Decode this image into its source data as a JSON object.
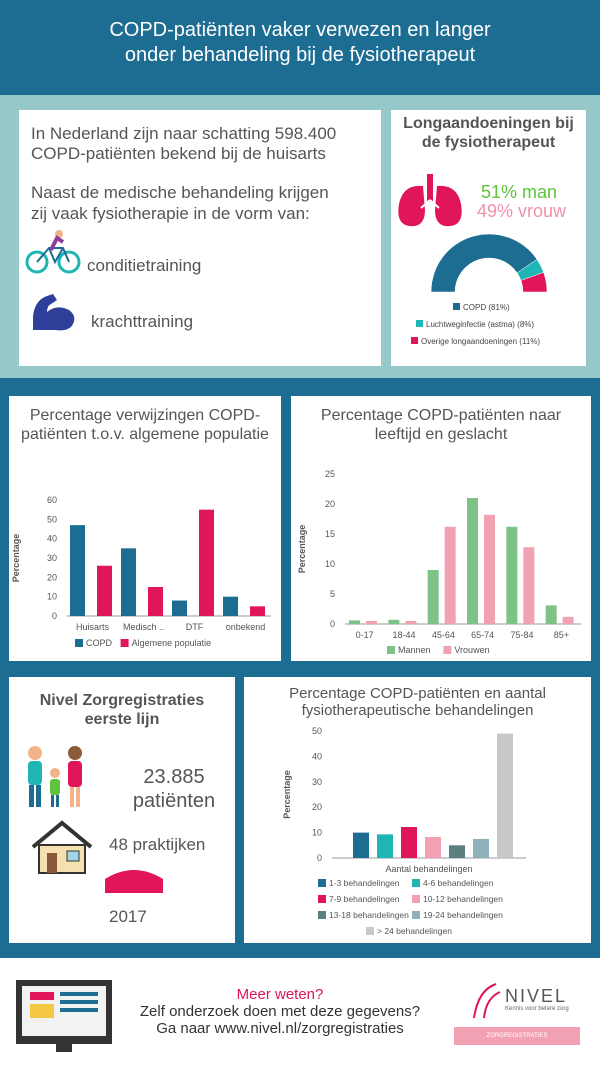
{
  "header": {
    "title_line1": "COPD-patiënten vaker verwezen en langer",
    "title_line2": "onder behandeling bij de fysiotherapeut"
  },
  "intro": {
    "line1": "In Nederland zijn naar schatting  598.400",
    "line2": "COPD-patiënten bekend bij de huisarts",
    "line3": "Naast de medische behandeling krijgen",
    "line4": "zij vaak fysiotherapie in de vorm van:",
    "item1": "conditietraining",
    "item2": "krachttraining"
  },
  "lung": {
    "title_line1": "Longaandoeningen bij",
    "title_line2": "de fysiotherapeut",
    "man": "51% man",
    "woman": "49% vrouw",
    "colors": {
      "copd": "#1d6d93",
      "luchtweg": "#1fb5b5",
      "overige": "#e0155a",
      "man": "#5ec43a",
      "woman": "#f290aa"
    },
    "slices": [
      {
        "label": "COPD (81%)",
        "value": 81
      },
      {
        "label": "Luchtweginfectie (astma) (8%)",
        "value": 8
      },
      {
        "label": "Overige longaandoeningen (11%)",
        "value": 11
      }
    ]
  },
  "chart1": {
    "title_line1": "Percentage verwijzingen COPD-",
    "title_line2": "patiënten t.o.v. algemene populatie",
    "ylabel": "Percentage",
    "ticks": [
      "0",
      "10",
      "20",
      "30",
      "40",
      "50",
      "60"
    ],
    "categories": [
      "Huisarts",
      "Medisch ..",
      "DTF",
      "onbekend"
    ],
    "legend": [
      "COPD",
      "Algemene populatie"
    ]
  },
  "chart2": {
    "title_line1": "Percentage COPD-patiënten naar",
    "title_line2": "leeftijd en geslacht",
    "ylabel": "Percentage",
    "ticks": [
      "0",
      "5",
      "10",
      "15",
      "20",
      "25"
    ],
    "categories": [
      "0-17",
      "18-44",
      "45-64",
      "65-74",
      "75-84",
      "85+"
    ],
    "legend": [
      "Mannen",
      "Vrouwen"
    ]
  },
  "nivel": {
    "title_line1": "Nivel Zorgregistraties",
    "title_line2": "eerste lijn",
    "patients_num": "23.885",
    "patients_label": "patiënten",
    "practices": "48 praktijken",
    "year": "2017"
  },
  "chart3": {
    "title_line1": "Percentage COPD-patiënten en aantal",
    "title_line2": "fysiotherapeutische behandelingen",
    "ylabel": "Percentage",
    "xlabel": "Aantal behandelingen",
    "ticks": [
      "0",
      "10",
      "20",
      "30",
      "40",
      "50"
    ],
    "legend": [
      "1-3 behandelingen",
      "4-6 behandelingen",
      "7-9 behandelingen",
      "10-12 behandelingen",
      "13-18 behandelingen",
      "19-24 behandelingen",
      "> 24 behandelingen"
    ]
  },
  "footer": {
    "meer": "Meer weten?",
    "line2": "Zelf onderzoek doen met deze gegevens?",
    "line3": "Ga naar www.nivel.nl/zorgregistraties",
    "logo": "NIVEL",
    "tagline": "Kennis voor betere zorg",
    "badge": "ZORGREGISTRATIES"
  },
  "chart_data": [
    {
      "type": "bar",
      "title": "Percentage verwijzingen COPD-patiënten t.o.v. algemene populatie",
      "ylabel": "Percentage",
      "ylim": [
        0,
        60
      ],
      "categories": [
        "Huisarts",
        "Medisch ..",
        "DTF",
        "onbekend"
      ],
      "series": [
        {
          "name": "COPD",
          "values": [
            47,
            35,
            8,
            10
          ],
          "color": "#1d6d93"
        },
        {
          "name": "Algemene populatie",
          "values": [
            26,
            15,
            55,
            5
          ],
          "color": "#e0155a"
        }
      ]
    },
    {
      "type": "bar",
      "title": "Percentage COPD-patiënten naar leeftijd en geslacht",
      "ylabel": "Percentage",
      "ylim": [
        0,
        25
      ],
      "categories": [
        "0-17",
        "18-44",
        "45-64",
        "65-74",
        "75-84",
        "85+"
      ],
      "series": [
        {
          "name": "Mannen",
          "values": [
            0.6,
            0.7,
            9,
            21,
            16.2,
            3.1
          ],
          "color": "#7dc387"
        },
        {
          "name": "Vrouwen",
          "values": [
            0.5,
            0.5,
            16.2,
            18.2,
            12.8,
            1.2
          ],
          "color": "#f2a1b3"
        }
      ]
    },
    {
      "type": "bar",
      "title": "Percentage COPD-patiënten en aantal fysiotherapeutische behandelingen",
      "ylabel": "Percentage",
      "xlabel": "Aantal behandelingen",
      "ylim": [
        0,
        50
      ],
      "categories": [
        "1-3 behandelingen",
        "4-6 behandelingen",
        "7-9 behandelingen",
        "10-12 behandelingen",
        "13-18 behandelingen",
        "19-24 behandelingen",
        "> 24 behandelingen"
      ],
      "values": [
        10,
        9.3,
        12.2,
        8.3,
        5,
        7.5,
        49
      ],
      "colors": [
        "#1d6d93",
        "#1fb5b5",
        "#e0155a",
        "#f2a1b3",
        "#5a7f7f",
        "#8fb1ba",
        "#c8c8c8"
      ]
    },
    {
      "type": "pie",
      "title": "Longaandoeningen bij de fysiotherapeut",
      "categories": [
        "COPD (81%)",
        "Luchtweginfectie (astma) (8%)",
        "Overige longaandoeningen (11%)"
      ],
      "values": [
        81,
        8,
        11
      ]
    }
  ]
}
